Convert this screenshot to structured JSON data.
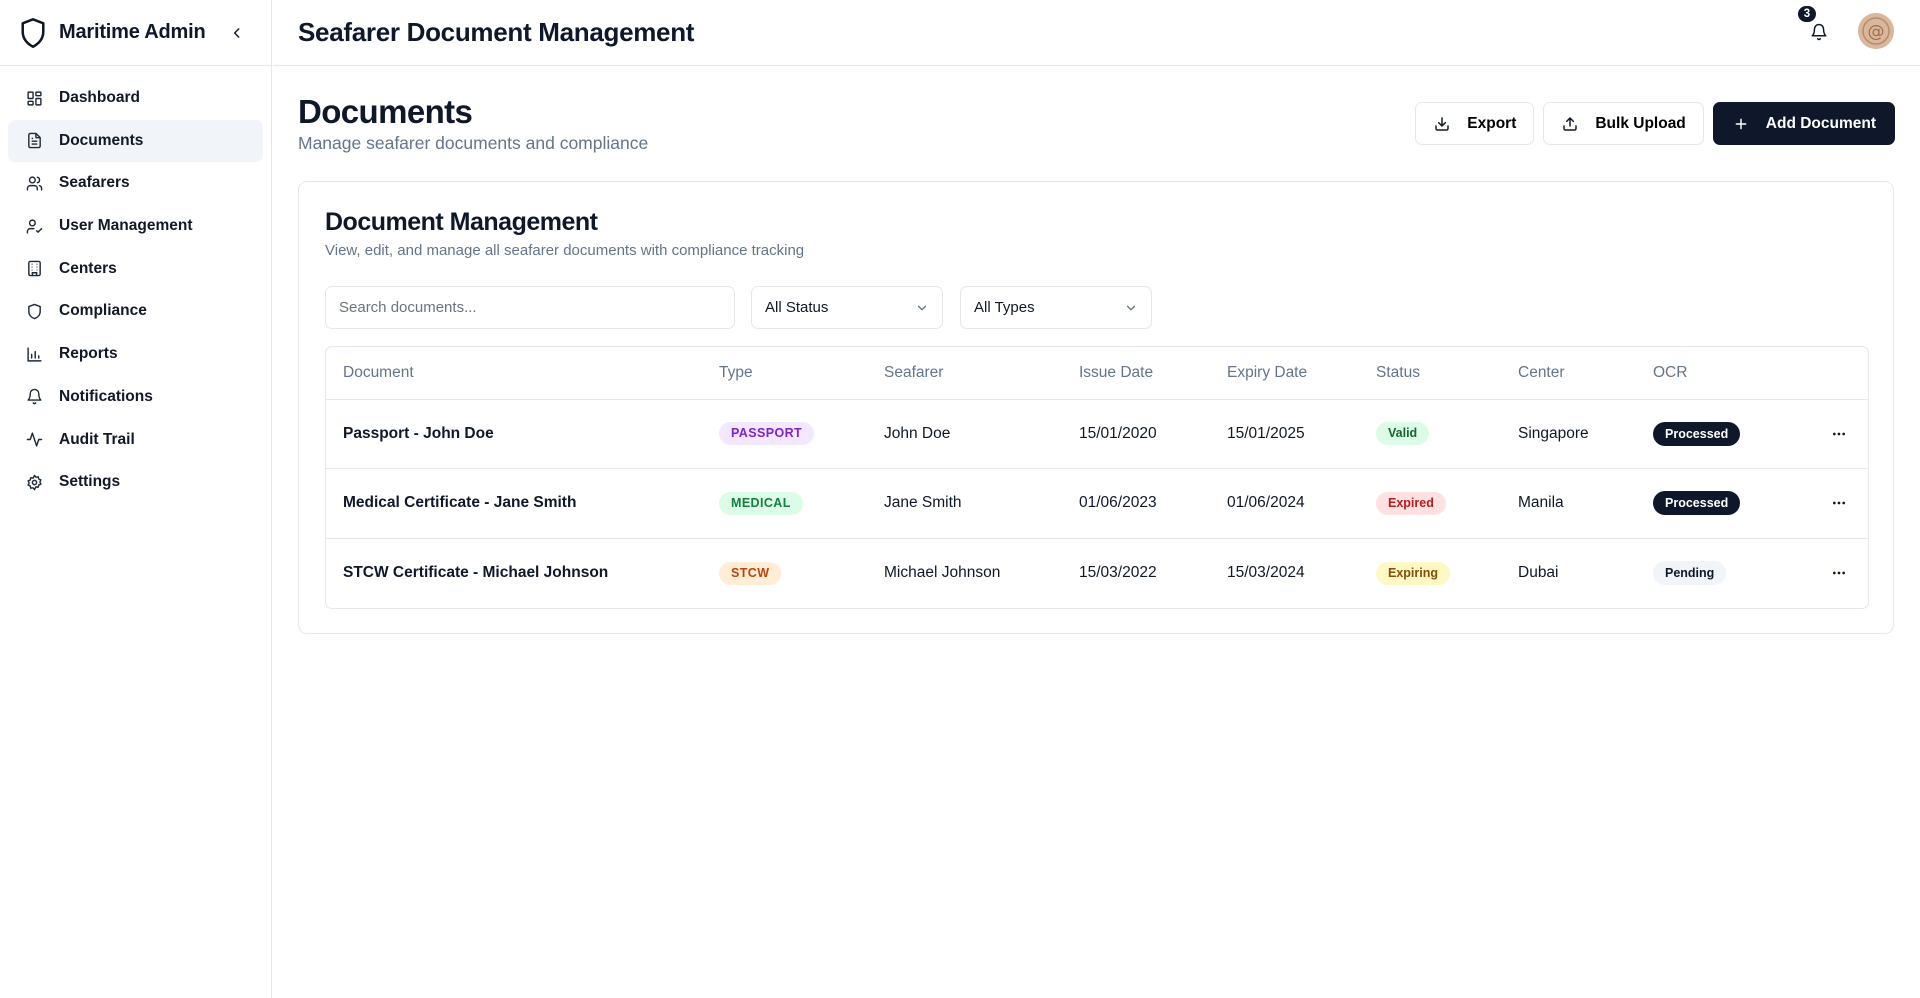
{
  "app": {
    "name": "Maritime Admin"
  },
  "topbar": {
    "title": "Seafarer Document Management",
    "notification_count": "3"
  },
  "sidebar": {
    "items": [
      {
        "label": "Dashboard",
        "icon": "dashboard-icon",
        "active": false
      },
      {
        "label": "Documents",
        "icon": "document-icon",
        "active": true
      },
      {
        "label": "Seafarers",
        "icon": "users-icon",
        "active": false
      },
      {
        "label": "User Management",
        "icon": "user-check-icon",
        "active": false
      },
      {
        "label": "Centers",
        "icon": "building-icon",
        "active": false
      },
      {
        "label": "Compliance",
        "icon": "shield-icon",
        "active": false
      },
      {
        "label": "Reports",
        "icon": "bar-chart-icon",
        "active": false
      },
      {
        "label": "Notifications",
        "icon": "bell-icon",
        "active": false
      },
      {
        "label": "Audit Trail",
        "icon": "activity-icon",
        "active": false
      },
      {
        "label": "Settings",
        "icon": "gear-icon",
        "active": false
      }
    ]
  },
  "page": {
    "title": "Documents",
    "subtitle": "Manage seafarer documents and compliance",
    "actions": {
      "export": "Export",
      "bulk_upload": "Bulk Upload",
      "add": "Add Document"
    }
  },
  "card": {
    "title": "Document Management",
    "subtitle": "View, edit, and manage all seafarer documents with compliance tracking",
    "search_placeholder": "Search documents...",
    "status_filter": "All Status",
    "type_filter": "All Types"
  },
  "table": {
    "columns": [
      "Document",
      "Type",
      "Seafarer",
      "Issue Date",
      "Expiry Date",
      "Status",
      "Center",
      "OCR"
    ],
    "rows": [
      {
        "document": "Passport - John Doe",
        "type": "PASSPORT",
        "seafarer": "John Doe",
        "issue": "15/01/2020",
        "expiry": "15/01/2025",
        "status": "Valid",
        "center": "Singapore",
        "ocr": "Processed"
      },
      {
        "document": "Medical Certificate - Jane Smith",
        "type": "MEDICAL",
        "seafarer": "Jane Smith",
        "issue": "01/06/2023",
        "expiry": "01/06/2024",
        "status": "Expired",
        "center": "Manila",
        "ocr": "Processed"
      },
      {
        "document": "STCW Certificate - Michael Johnson",
        "type": "STCW",
        "seafarer": "Michael Johnson",
        "issue": "15/03/2022",
        "expiry": "15/03/2024",
        "status": "Expiring",
        "center": "Dubai",
        "ocr": "Pending"
      }
    ]
  },
  "colors": {
    "primary": "#0f172a",
    "type_passport_bg": "#f3e8ff",
    "type_passport_fg": "#7e22ce",
    "type_medical_bg": "#dcfce7",
    "type_medical_fg": "#15803d",
    "type_stcw_bg": "#ffedd5",
    "type_stcw_fg": "#c2410c",
    "status_valid_bg": "#dcfce7",
    "status_valid_fg": "#166534",
    "status_expired_bg": "#fee2e2",
    "status_expired_fg": "#b91c1c",
    "status_expiring_bg": "#fef9c3",
    "status_expiring_fg": "#854d0e",
    "ocr_processed_bg": "#0f172a",
    "ocr_processed_fg": "#ffffff",
    "ocr_pending_bg": "#f1f5f9",
    "ocr_pending_fg": "#0f172a"
  }
}
